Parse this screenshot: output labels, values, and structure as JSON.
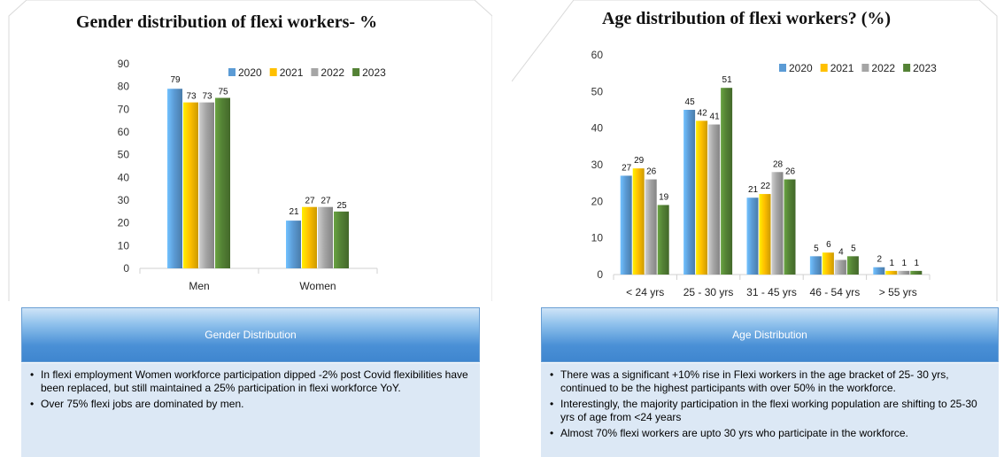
{
  "colors": {
    "2020": "#5b9bd5",
    "2021": "#ffc000",
    "2022": "#a5a5a5",
    "2023": "#548235"
  },
  "chart_data": [
    {
      "type": "bar",
      "title": "Gender distribution of flexi workers- %",
      "categories": [
        "Men",
        "Women"
      ],
      "series": [
        {
          "name": "2020",
          "values": [
            79,
            21
          ]
        },
        {
          "name": "2021",
          "values": [
            73,
            27
          ]
        },
        {
          "name": "2022",
          "values": [
            73,
            27
          ]
        },
        {
          "name": "2023",
          "values": [
            75,
            25
          ]
        }
      ],
      "ylim": [
        0,
        90
      ],
      "yticks": [
        0,
        10,
        20,
        30,
        40,
        50,
        60,
        70,
        80,
        90
      ],
      "legend": "top-right",
      "grid": false
    },
    {
      "type": "bar",
      "title": "Age distribution of flexi workers? (%)",
      "categories": [
        "< 24 yrs",
        "25 - 30 yrs",
        "31 - 45 yrs",
        "46 - 54 yrs",
        "> 55 yrs"
      ],
      "series": [
        {
          "name": "2020",
          "values": [
            27,
            45,
            21,
            5,
            2
          ]
        },
        {
          "name": "2021",
          "values": [
            29,
            42,
            22,
            6,
            1
          ]
        },
        {
          "name": "2022",
          "values": [
            26,
            41,
            28,
            4,
            1
          ]
        },
        {
          "name": "2023",
          "values": [
            19,
            51,
            26,
            5,
            1
          ]
        }
      ],
      "ylim": [
        0,
        60
      ],
      "yticks": [
        0,
        10,
        20,
        30,
        40,
        50,
        60
      ],
      "legend": "top-right",
      "grid": false
    }
  ],
  "left": {
    "banner": "Gender Distribution",
    "notes": [
      "In flexi employment Women workforce participation dipped -2% post Covid flexibilities have been replaced, but still maintained a 25% participation in flexi workforce YoY.",
      "Over 75% flexi jobs are dominated by men."
    ]
  },
  "right": {
    "banner": "Age Distribution",
    "notes": [
      "There was a significant +10% rise in Flexi workers in the age bracket of 25- 30 yrs, continued to be the highest participants with over 50% in the workforce.",
      "Interestingly, the majority participation in the flexi working population are shifting to 25-30 yrs of age from <24 years",
      "Almost 70% flexi workers are upto 30 yrs who participate in the workforce."
    ]
  }
}
